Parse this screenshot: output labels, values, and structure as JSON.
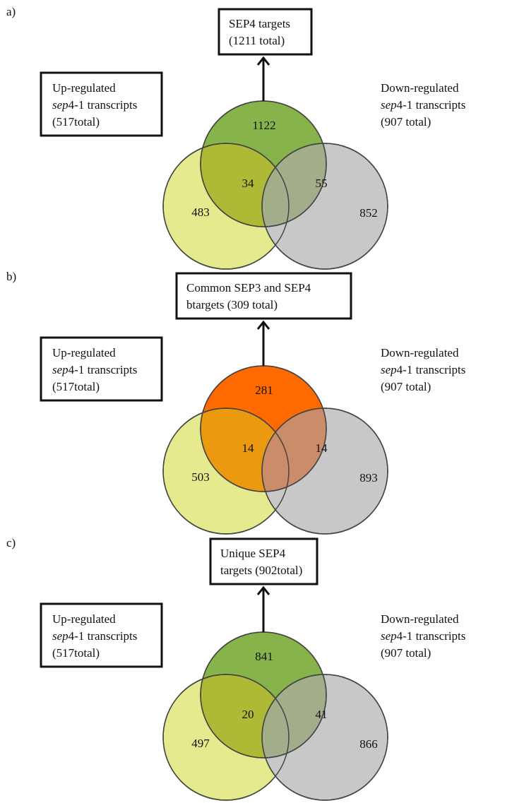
{
  "panels": [
    {
      "label": "a)",
      "top_box": [
        "SEP4 targets",
        "(1211 total)"
      ],
      "left_box": [
        {
          "plain": "Up-regulated",
          "ital": ""
        },
        {
          "plain": "4-1 transcripts",
          "ital": "sep"
        },
        {
          "plain": "(517total)",
          "ital": ""
        }
      ],
      "right_box": [
        {
          "plain": "Down-regulated",
          "ital": ""
        },
        {
          "plain": "4-1 transcripts",
          "ital": "sep"
        },
        {
          "plain": "(907 total)",
          "ital": ""
        }
      ],
      "counts": {
        "top": "1122",
        "left": "483",
        "right": "852",
        "left_top": "34",
        "right_top": "55"
      },
      "colors": {
        "top": "#86B34A",
        "left": "#E6EA8E",
        "right": "#C8C8C8",
        "left_top": "#AEB936",
        "right_top": "#A2AD8A"
      }
    },
    {
      "label": "b)",
      "top_box": [
        "Common SEP3 and SEP4",
        "btargets (309 total)"
      ],
      "left_box": [
        {
          "plain": "Up-regulated",
          "ital": ""
        },
        {
          "plain": "4-1 transcripts",
          "ital": "sep"
        },
        {
          "plain": "(517total)",
          "ital": ""
        }
      ],
      "right_box": [
        {
          "plain": "Down-regulated",
          "ital": ""
        },
        {
          "plain": "4-1 transcripts",
          "ital": "sep"
        },
        {
          "plain": "(907 total)",
          "ital": ""
        }
      ],
      "counts": {
        "top": "281",
        "left": "503",
        "right": "893",
        "left_top": "14",
        "right_top": "14"
      },
      "colors": {
        "top": "#FF6A00",
        "left": "#E6EA8E",
        "right": "#C8C8C8",
        "left_top": "#EB9A10",
        "right_top": "#CB8C6A"
      }
    },
    {
      "label": "c)",
      "top_box": [
        "Unique SEP4",
        "targets (902total)"
      ],
      "left_box": [
        {
          "plain": "Up-regulated",
          "ital": ""
        },
        {
          "plain": "4-1 transcripts",
          "ital": "sep"
        },
        {
          "plain": "(517total)",
          "ital": ""
        }
      ],
      "right_box": [
        {
          "plain": "Down-regulated",
          "ital": ""
        },
        {
          "plain": "4-1 transcripts",
          "ital": "sep"
        },
        {
          "plain": "(907 total)",
          "ital": ""
        }
      ],
      "counts": {
        "top": "841",
        "left": "497",
        "right": "866",
        "left_top": "20",
        "right_top": "41"
      },
      "colors": {
        "top": "#86B34A",
        "left": "#E6EA8E",
        "right": "#C8C8C8",
        "left_top": "#AEB936",
        "right_top": "#A2AD8A"
      }
    }
  ]
}
